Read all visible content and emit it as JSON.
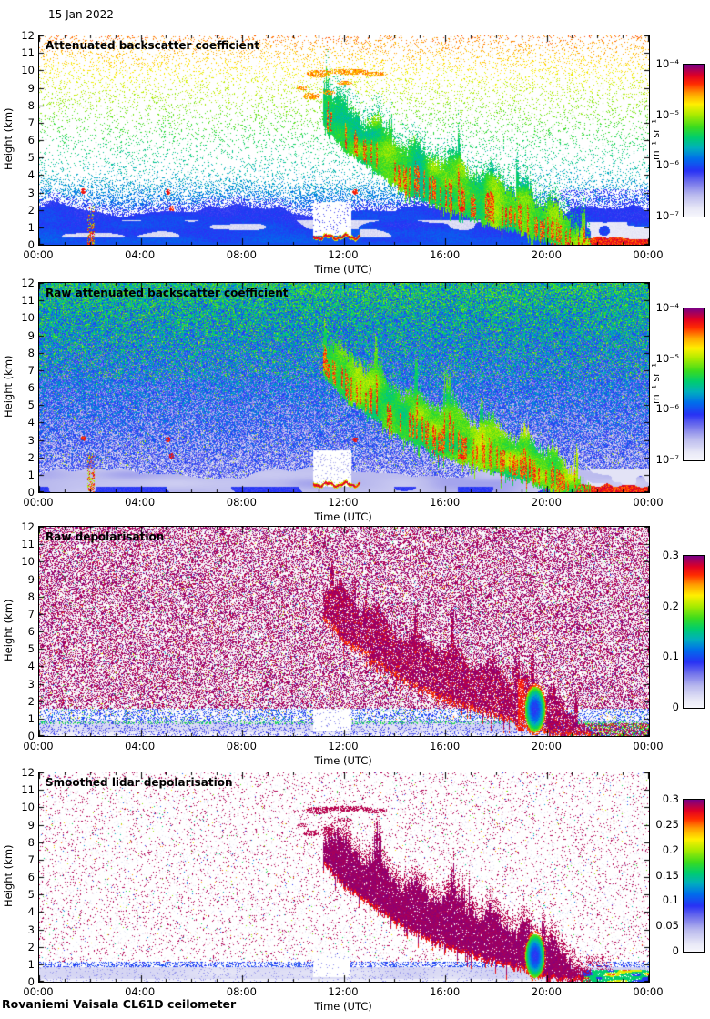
{
  "header": {
    "date_label": "15 Jan 2022"
  },
  "footer": {
    "caption": "Rovaniemi Vaisala CL61D ceilometer"
  },
  "chart_data": [
    {
      "type": "heatmap",
      "title": "Attenuated backscatter coefficient",
      "xlabel": "Time (UTC)",
      "ylabel": "Height (km)",
      "x_ticks": [
        "00:00",
        "04:00",
        "08:00",
        "12:00",
        "16:00",
        "20:00",
        "00:00"
      ],
      "x_tick_hours": [
        0,
        4,
        8,
        12,
        16,
        20,
        24
      ],
      "y_ticks": [
        "0",
        "1",
        "2",
        "3",
        "4",
        "5",
        "6",
        "7",
        "8",
        "9",
        "10",
        "11",
        "12"
      ],
      "xlim_hours": [
        0,
        24
      ],
      "ylim_km": [
        0,
        12
      ],
      "colorbar": {
        "scale": "log",
        "ticks": [
          "10⁻⁴",
          "10⁻⁵",
          "10⁻⁶",
          "10⁻⁷"
        ],
        "unit": "m⁻¹ sr⁻¹",
        "colors_top_to_bottom": [
          "#7D0082",
          "#E10023",
          "#FF2D00",
          "#FFA000",
          "#FFF000",
          "#A8EB00",
          "#3CDC1E",
          "#00CD6E",
          "#00AFBE",
          "#0064EB",
          "#2832F5",
          "#7676EB",
          "#ECECF8"
        ]
      },
      "features": [
        "Sparse noise speckle graded with height on white: blue 2-4 km, teal-green 4-7 km, yellow 7-9 km, orange 9-12 km",
        "Boundary-layer blue band below ~2 km with lighter grey patches near 1 km",
        "Precipitation fall streaks descending from ~8.5 km at 12:00 UTC to the surface by ~21:00 UTC, green-yellow with orange-red cores",
        "Orange cloud patches near 9.5-10 km between 10:30 and 13:40 UTC",
        "Thin red layer near 0.5 km from 10:50-12:40 UTC with a clear white notch above it",
        "Red vertical echo near 02:00 UTC below 2 km",
        "After 20:20 UTC strong red surface returns with grey patches below 1.5 km until midnight"
      ],
      "render": {
        "style": "backscatter_sparse",
        "seed": 11
      }
    },
    {
      "type": "heatmap",
      "title": "Raw attenuated backscatter coefficient",
      "xlabel": "Time (UTC)",
      "ylabel": "Height (km)",
      "x_ticks": [
        "00:00",
        "04:00",
        "08:00",
        "12:00",
        "16:00",
        "20:00",
        "00:00"
      ],
      "x_tick_hours": [
        0,
        4,
        8,
        12,
        16,
        20,
        24
      ],
      "y_ticks": [
        "0",
        "1",
        "2",
        "3",
        "4",
        "5",
        "6",
        "7",
        "8",
        "9",
        "10",
        "11",
        "12"
      ],
      "xlim_hours": [
        0,
        24
      ],
      "ylim_km": [
        0,
        12
      ],
      "colorbar": {
        "scale": "log",
        "ticks": [
          "10⁻⁴",
          "10⁻⁵",
          "10⁻⁶",
          "10⁻⁷"
        ],
        "unit": "m⁻¹ sr⁻¹",
        "colors_top_to_bottom": [
          "#7D0082",
          "#E10023",
          "#FF2D00",
          "#FFA000",
          "#FFF000",
          "#A8EB00",
          "#3CDC1E",
          "#00CD6E",
          "#00AFBE",
          "#0064EB",
          "#2832F5",
          "#7676EB",
          "#ECECF8"
        ]
      },
      "features": [
        "Dense raw-signal noise everywhere: green-dominated above ~7 km grading to blue, pale/white below 3 km",
        "Pale blue surface layer below ~1 km",
        "Same descending precipitation streak, yellow-orange with red cores",
        "Red vertical echo near 02:00 UTC; thin red layer near 0.5 km around 11:00-12:40 UTC",
        "Strong red surface returns after 20:20 UTC"
      ],
      "render": {
        "style": "backscatter_raw_dense",
        "seed": 22
      }
    },
    {
      "type": "heatmap",
      "title": "Raw depolarisation",
      "xlabel": "Time (UTC)",
      "ylabel": "Height (km)",
      "x_ticks": [
        "00:00",
        "04:00",
        "08:00",
        "12:00",
        "16:00",
        "20:00",
        "00:00"
      ],
      "x_tick_hours": [
        0,
        4,
        8,
        12,
        16,
        20,
        24
      ],
      "y_ticks": [
        "0",
        "1",
        "2",
        "3",
        "4",
        "5",
        "6",
        "7",
        "8",
        "9",
        "10",
        "11",
        "12"
      ],
      "xlim_hours": [
        0,
        24
      ],
      "ylim_km": [
        0,
        12
      ],
      "colorbar": {
        "scale": "linear",
        "ticks": [
          "0.3",
          "0.2",
          "0.1",
          "0"
        ],
        "unit": "",
        "colors_top_to_bottom": [
          "#7D0082",
          "#E10023",
          "#FF2D00",
          "#FFA000",
          "#FFF000",
          "#A8EB00",
          "#3CDC1E",
          "#00CD6E",
          "#00AFBE",
          "#0064EB",
          "#2832F5",
          "#7676EB",
          "#ECECF8"
        ]
      },
      "features": [
        "Dense purple depolarisation noise speckle (~0.3) on white over the whole panel",
        "Solid purple streak of falling ice descending from ~8 km at 12:00 UTC to the surface by 21:00 UTC, red-fringed at its base",
        "Low-depolarisation layer below ~0.9 km: pale lavender with blue speckles and green dots at its top",
        "Blue-green-yellow low-depolarisation pocket near 19:30 UTC between 0.5 and 2.5 km",
        "Mixed purple and rainbow surface values after 21:00 UTC"
      ],
      "render": {
        "style": "depol_raw",
        "seed": 33
      }
    },
    {
      "type": "heatmap",
      "title": "Smoothed lidar depolarisation",
      "xlabel": "Time (UTC)",
      "ylabel": "Height (km)",
      "x_ticks": [
        "00:00",
        "04:00",
        "08:00",
        "12:00",
        "16:00",
        "20:00",
        "00:00"
      ],
      "x_tick_hours": [
        0,
        4,
        8,
        12,
        16,
        20,
        24
      ],
      "y_ticks": [
        "0",
        "1",
        "2",
        "3",
        "4",
        "5",
        "6",
        "7",
        "8",
        "9",
        "10",
        "11",
        "12"
      ],
      "xlim_hours": [
        0,
        24
      ],
      "ylim_km": [
        0,
        12
      ],
      "colorbar": {
        "scale": "linear",
        "ticks": [
          "0.3",
          "0.25",
          "0.2",
          "0.15",
          "0.1",
          "0.05",
          "0"
        ],
        "unit": "",
        "colors_top_to_bottom": [
          "#7D0082",
          "#E10023",
          "#FF2D00",
          "#FFA000",
          "#FFF000",
          "#A8EB00",
          "#3CDC1E",
          "#00CD6E",
          "#00AFBE",
          "#0064EB",
          "#2832F5",
          "#7676EB",
          "#ECECF8"
        ]
      },
      "features": [
        "White background with sparse purple speckles",
        "Solid dark-purple smoothed streak (depolarisation ~0.3) descending from ~8.5 km at 12:00 UTC to the surface by 21:00 UTC with a red rim",
        "Purple cloud patches near 9.5-10 km between 10:30 and 13:40 UTC",
        "Thin blue dotted line near 1 km above a pale lavender sub-kilometre layer",
        "Blue-green pocket near 19:30 UTC; green, yellow and blue surface streaks after 21:30 UTC"
      ],
      "render": {
        "style": "depol_smooth",
        "seed": 44
      }
    }
  ]
}
